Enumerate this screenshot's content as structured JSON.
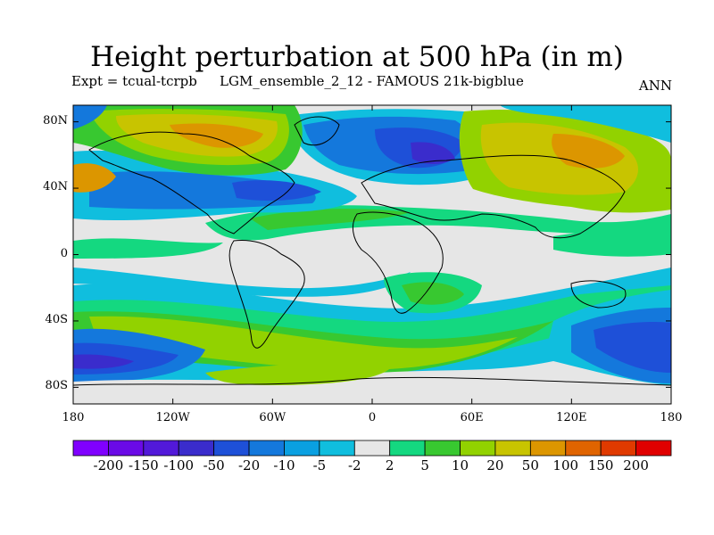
{
  "title": "Height perturbation at 500 hPa (in m)",
  "subtitle": {
    "experiment": "Expt = tcual-tcrpb",
    "run": "LGM_ensemble_2_12 - FAMOUS 21k-bigblue",
    "season": "ANN"
  },
  "map": {
    "projection": "cylindrical equidistant",
    "lon_range": [
      -180,
      180
    ],
    "lat_range": [
      -90,
      90
    ],
    "lat_ticks": [
      {
        "value": 80,
        "label": "80N"
      },
      {
        "value": 40,
        "label": "40N"
      },
      {
        "value": 0,
        "label": "0"
      },
      {
        "value": -40,
        "label": "40S"
      },
      {
        "value": -80,
        "label": "80S"
      }
    ],
    "lon_ticks": [
      {
        "value": -180,
        "label": "180"
      },
      {
        "value": -120,
        "label": "120W"
      },
      {
        "value": -60,
        "label": "60W"
      },
      {
        "value": 0,
        "label": "0"
      },
      {
        "value": 60,
        "label": "60E"
      },
      {
        "value": 120,
        "label": "120E"
      },
      {
        "value": 180,
        "label": "180"
      }
    ]
  },
  "colorbar": {
    "levels": [
      "-200",
      "-150",
      "-100",
      "-50",
      "-20",
      "-10",
      "-5",
      "-2",
      "2",
      "5",
      "10",
      "20",
      "50",
      "100",
      "150",
      "200"
    ],
    "colors": [
      "#8000ff",
      "#6a0ae6",
      "#5219d9",
      "#3a2ccc",
      "#1e50d8",
      "#1478dc",
      "#0aa0e1",
      "#10bede",
      "#e6e6e6",
      "#14d880",
      "#38c830",
      "#92d200",
      "#c8c400",
      "#dc9600",
      "#e06400",
      "#e03a00",
      "#e00000"
    ]
  }
}
